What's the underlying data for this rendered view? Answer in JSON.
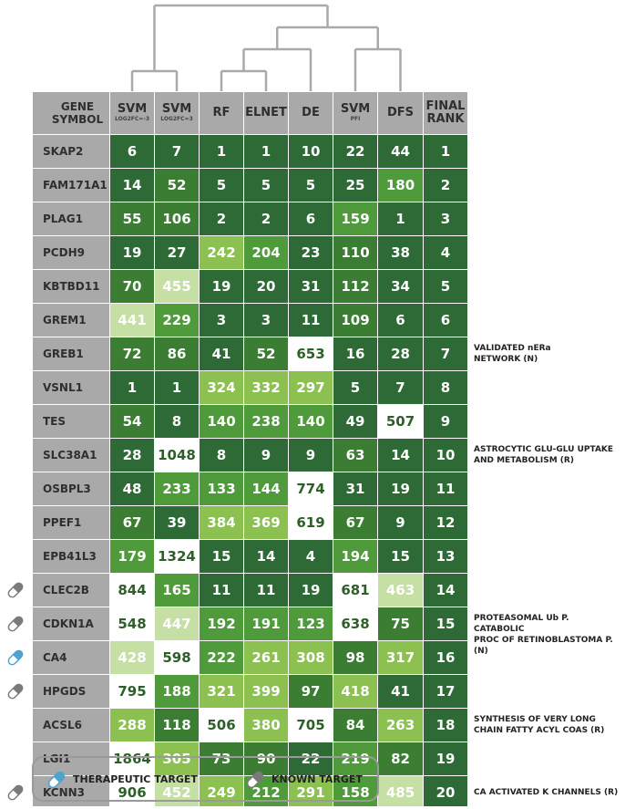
{
  "colors": {
    "darkest": "#2e6a35",
    "dark": "#3b7d32",
    "medium": "#4f9a3a",
    "light": "#8cc152",
    "lighter": "#c5dfa4",
    "white": "#ffffff",
    "final_rank": "#2e6a35",
    "gene_bg": "#a9a9a9",
    "dendrogram": "#a9a9a9",
    "therapeutic": "#4ea3cf",
    "known": "#7a7a7a"
  },
  "chart_data": {
    "type": "heatmap",
    "gene_column_header": "GENE SYMBOL",
    "columns": [
      {
        "label": "SVM",
        "sub": "LOG2FC=-3"
      },
      {
        "label": "SVM",
        "sub": "LOG2FC=3"
      },
      {
        "label": "RF",
        "sub": ""
      },
      {
        "label": "ELNET",
        "sub": ""
      },
      {
        "label": "DE",
        "sub": ""
      },
      {
        "label": "SVM",
        "sub": "PFI"
      },
      {
        "label": "DFS",
        "sub": ""
      },
      {
        "label": "FINAL RANK",
        "sub": ""
      }
    ],
    "rows": [
      {
        "gene": "SKAP2",
        "values": [
          6,
          7,
          1,
          1,
          10,
          22,
          44,
          1
        ],
        "target": "",
        "note": ""
      },
      {
        "gene": "FAM171A1",
        "values": [
          14,
          52,
          5,
          5,
          5,
          25,
          180,
          2
        ],
        "target": "",
        "note": ""
      },
      {
        "gene": "PLAG1",
        "values": [
          55,
          106,
          2,
          2,
          6,
          159,
          1,
          3
        ],
        "target": "",
        "note": ""
      },
      {
        "gene": "PCDH9",
        "values": [
          19,
          27,
          242,
          204,
          23,
          110,
          38,
          4
        ],
        "target": "",
        "note": ""
      },
      {
        "gene": "KBTBD11",
        "values": [
          70,
          455,
          19,
          20,
          31,
          112,
          34,
          5
        ],
        "target": "",
        "note": ""
      },
      {
        "gene": "GREM1",
        "values": [
          441,
          229,
          3,
          3,
          11,
          109,
          6,
          6
        ],
        "target": "",
        "note": ""
      },
      {
        "gene": "GREB1",
        "values": [
          72,
          86,
          41,
          52,
          653,
          16,
          28,
          7
        ],
        "target": "",
        "note": "VALIDATED nERa\nNETWORK  (N)"
      },
      {
        "gene": "VSNL1",
        "values": [
          1,
          1,
          324,
          332,
          297,
          5,
          7,
          8
        ],
        "target": "",
        "note": ""
      },
      {
        "gene": "TES",
        "values": [
          54,
          8,
          140,
          238,
          140,
          49,
          507,
          9
        ],
        "target": "",
        "note": ""
      },
      {
        "gene": "SLC38A1",
        "values": [
          28,
          1048,
          8,
          9,
          9,
          63,
          14,
          10
        ],
        "target": "",
        "note": "ASTROCYTIC GLU-GLU UPTAKE\nAND METABOLISM (R)"
      },
      {
        "gene": "OSBPL3",
        "values": [
          48,
          233,
          133,
          144,
          774,
          31,
          19,
          11
        ],
        "target": "",
        "note": ""
      },
      {
        "gene": "PPEF1",
        "values": [
          67,
          39,
          384,
          369,
          619,
          67,
          9,
          12
        ],
        "target": "",
        "note": ""
      },
      {
        "gene": "EPB41L3",
        "values": [
          179,
          1324,
          15,
          14,
          4,
          194,
          15,
          13
        ],
        "target": "",
        "note": ""
      },
      {
        "gene": "CLEC2B",
        "values": [
          844,
          165,
          11,
          11,
          19,
          681,
          463,
          14
        ],
        "target": "known",
        "note": ""
      },
      {
        "gene": "CDKN1A",
        "values": [
          548,
          447,
          192,
          191,
          123,
          638,
          75,
          15
        ],
        "target": "known",
        "note": "PROTEASOMAL Ub P. CATABOLIC\nPROC OF RETINOBLASTOMA P. (N)"
      },
      {
        "gene": "CA4",
        "values": [
          428,
          598,
          222,
          261,
          308,
          98,
          317,
          16
        ],
        "target": "therapeutic",
        "note": ""
      },
      {
        "gene": "HPGDS",
        "values": [
          795,
          188,
          321,
          399,
          97,
          418,
          41,
          17
        ],
        "target": "known",
        "note": ""
      },
      {
        "gene": "ACSL6",
        "values": [
          288,
          118,
          506,
          380,
          705,
          84,
          263,
          18
        ],
        "target": "",
        "note": "SYNTHESIS OF VERY LONG\nCHAIN FATTY ACYL COAS (R)"
      },
      {
        "gene": "LGI1",
        "values": [
          1864,
          305,
          73,
          90,
          22,
          219,
          82,
          19
        ],
        "target": "",
        "note": ""
      },
      {
        "gene": "KCNN3",
        "values": [
          906,
          452,
          249,
          212,
          291,
          158,
          485,
          20
        ],
        "target": "known",
        "note": "CA ACTIVATED K CHANNELS (R)"
      }
    ],
    "dendrogram_order": [
      "SVM LOG2FC=-3",
      "SVM LOG2FC=3",
      "RF",
      "ELNET",
      "DE",
      "SVM PFI",
      "DFS"
    ]
  },
  "legend": {
    "therapeutic_label": "THERAPEUTIC TARGET",
    "known_label": "KNOWN TARGET"
  }
}
